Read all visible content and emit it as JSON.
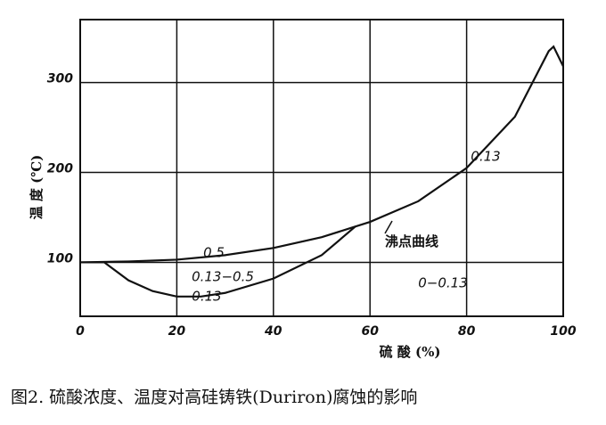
{
  "chart_data": {
    "type": "line",
    "x_label": "硫 酸 (%)",
    "y_label": "温 度 (℃)",
    "caption": "图2.   硫酸浓度、温度对高硅铸铁(Duriron)腐蚀的影响",
    "xlim": [
      0,
      100
    ],
    "xticks": [
      0,
      20,
      40,
      60,
      80,
      100
    ],
    "ylim": [
      40,
      370
    ],
    "yticks": [
      100,
      200,
      300
    ],
    "grid": true,
    "series": [
      {
        "color": "#111111",
        "x": [
          0,
          10,
          20,
          30,
          40,
          50,
          60,
          70,
          80,
          90,
          97,
          98,
          100
        ],
        "values": [
          100,
          101,
          103,
          108,
          116,
          128,
          145,
          168,
          205,
          262,
          335,
          340,
          318
        ]
      },
      {
        "color": "#111111",
        "x": [
          0,
          5,
          10,
          15,
          20,
          25,
          30,
          40,
          50,
          57
        ],
        "values": [
          100,
          100,
          80,
          68,
          62,
          62,
          66,
          82,
          108,
          140
        ]
      }
    ],
    "annotations": [
      "0.5",
      "0.13−0.5",
      "0.13",
      "0.13",
      "沸点曲线",
      "0−0.13"
    ]
  }
}
